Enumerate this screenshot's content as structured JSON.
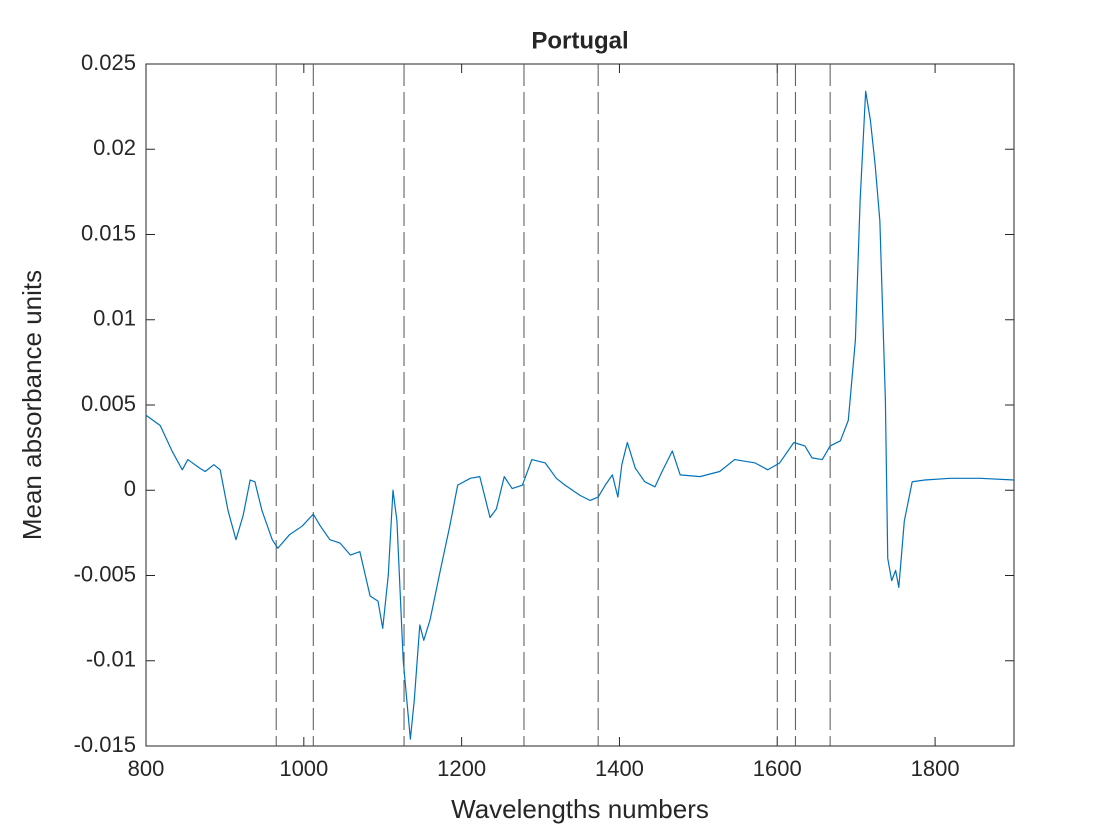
{
  "chart_data": {
    "type": "line",
    "title": "Portugal",
    "x_label": "Wavelengths numbers",
    "y_label": "Mean absorbance units",
    "x": [
      800,
      818,
      833,
      846,
      853,
      868,
      875,
      886,
      894,
      904,
      914,
      923,
      932,
      938,
      947,
      960,
      967,
      982,
      998,
      1012,
      1021,
      1033,
      1046,
      1059,
      1071,
      1084,
      1094,
      1100,
      1107,
      1113,
      1118,
      1126,
      1135,
      1140,
      1147,
      1152,
      1160,
      1173,
      1185,
      1195,
      1211,
      1223,
      1236,
      1244,
      1254,
      1264,
      1277,
      1289,
      1306,
      1320,
      1331,
      1350,
      1363,
      1373,
      1382,
      1391,
      1398,
      1403,
      1410,
      1420,
      1432,
      1445,
      1454,
      1467,
      1477,
      1502,
      1527,
      1546,
      1572,
      1588,
      1603,
      1621,
      1635,
      1644,
      1657,
      1667,
      1680,
      1690,
      1699,
      1705,
      1712,
      1718,
      1724,
      1730,
      1737,
      1740,
      1745,
      1750,
      1754,
      1761,
      1771,
      1787,
      1819,
      1857,
      1900
    ],
    "values": [
      0.0044,
      0.0038,
      0.0023,
      0.0012,
      0.0018,
      0.0013,
      0.0011,
      0.0015,
      0.0012,
      -0.0012,
      -0.0029,
      -0.0015,
      0.0006,
      0.0005,
      -0.0012,
      -0.0029,
      -0.0034,
      -0.0026,
      -0.0021,
      -0.0014,
      -0.0021,
      -0.0029,
      -0.0031,
      -0.0038,
      -0.0036,
      -0.0062,
      -0.0065,
      -0.0081,
      -0.005,
      0.0,
      -0.0018,
      -0.01,
      -0.0146,
      -0.0123,
      -0.0079,
      -0.0088,
      -0.0076,
      -0.0047,
      -0.0021,
      0.0003,
      0.0007,
      0.0008,
      -0.0016,
      -0.0011,
      0.0008,
      0.0001,
      0.0003,
      0.0018,
      0.0016,
      0.0007,
      0.0003,
      -0.0003,
      -0.0006,
      -0.0004,
      0.0003,
      0.0009,
      -0.0004,
      0.0015,
      0.0028,
      0.0013,
      0.0005,
      0.0002,
      0.0011,
      0.0023,
      0.0009,
      0.0008,
      0.0011,
      0.0018,
      0.0016,
      0.0012,
      0.0016,
      0.0028,
      0.0026,
      0.0019,
      0.0018,
      0.0026,
      0.0029,
      0.0041,
      0.0088,
      0.017,
      0.0234,
      0.0217,
      0.0191,
      0.0158,
      0.0053,
      -0.004,
      -0.0053,
      -0.0047,
      -0.0057,
      -0.0018,
      0.0005,
      0.0006,
      0.0007,
      0.0007,
      0.0006
    ],
    "color": "#0072bd",
    "vlines": [
      965,
      1012,
      1127,
      1279,
      1373,
      1600,
      1623,
      1667
    ],
    "vline_color": "#555555",
    "xlim": [
      800,
      1900
    ],
    "xticks": [
      800,
      1000,
      1200,
      1400,
      1600,
      1800
    ],
    "ylim": [
      -0.015,
      0.025
    ],
    "yticks": [
      -0.015,
      -0.01,
      -0.005,
      0,
      0.005,
      0.01,
      0.015,
      0.02,
      0.025
    ],
    "grid": false
  }
}
